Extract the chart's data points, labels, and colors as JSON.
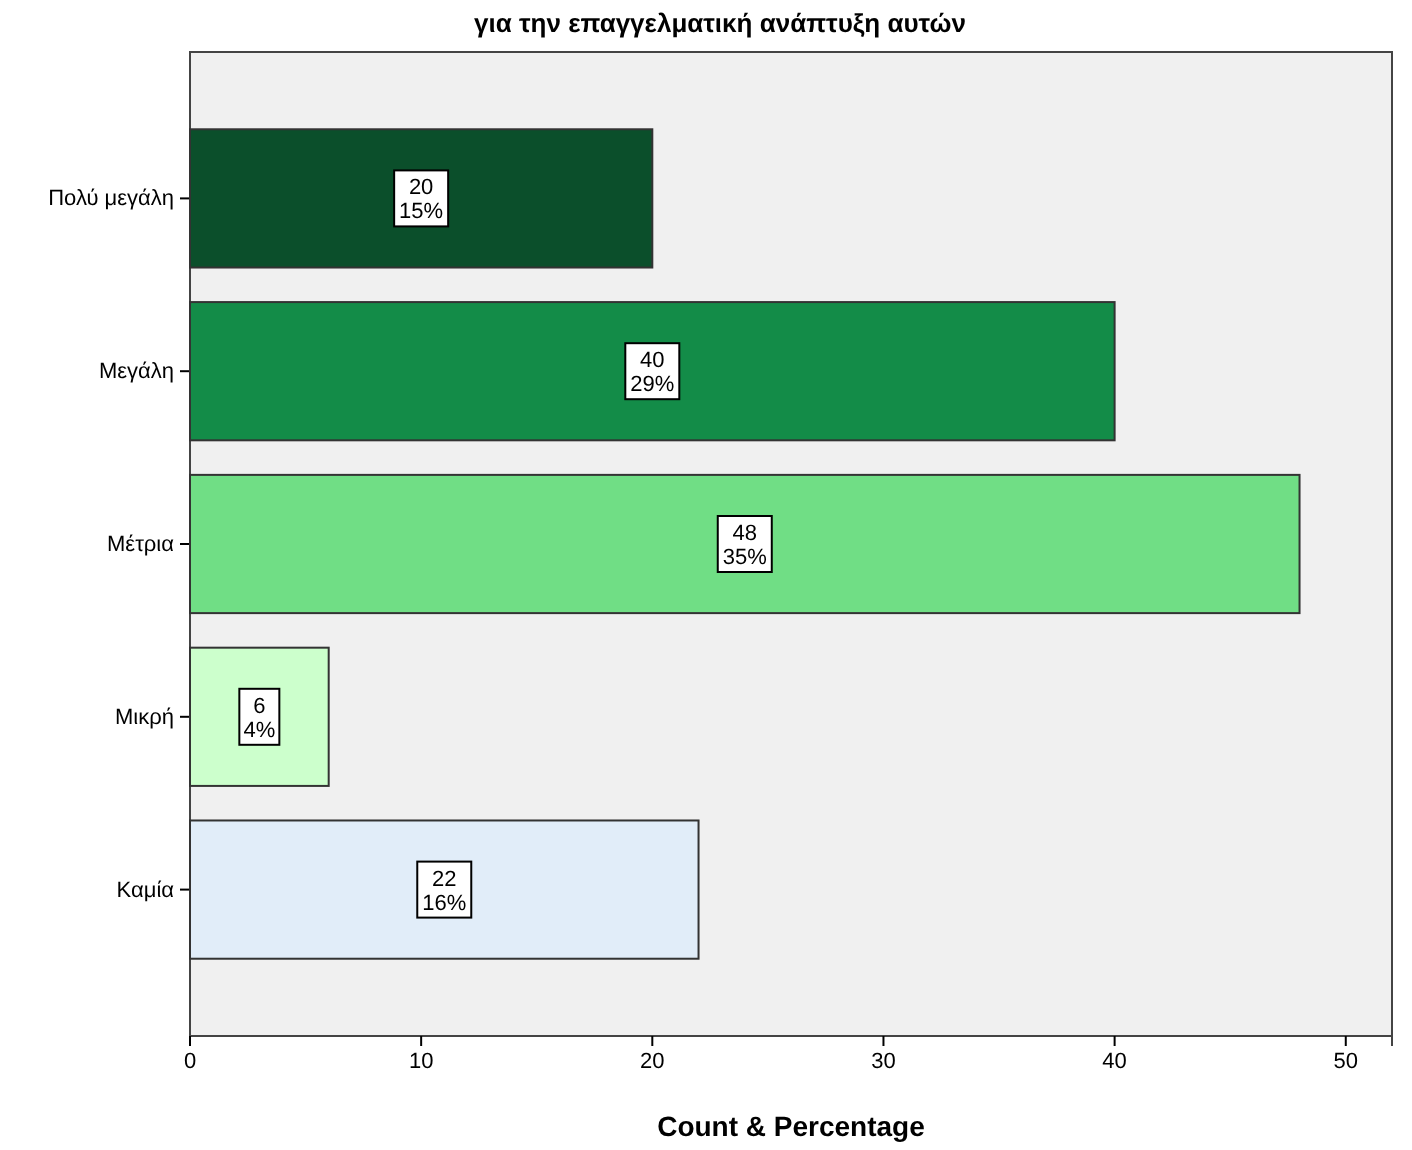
{
  "chart_data": {
    "type": "bar",
    "orientation": "horizontal",
    "title": "για την επαγγελματική ανάπτυξη αυτών",
    "xlabel": "Count & Percentage",
    "categories": [
      "Πολύ μεγάλη",
      "Μεγάλη",
      "Μέτρια",
      "Μικρή",
      "Καμία"
    ],
    "values": [
      20,
      40,
      48,
      6,
      22
    ],
    "colors": [
      "#0b4f2b",
      "#138c48",
      "#70de85",
      "#ccffcc",
      "#e1edf9"
    ],
    "value_labels": [
      "20\n15%",
      "40\n29%",
      "48\n35%",
      "6\n4%",
      "22\n16%"
    ],
    "xlim": [
      0,
      52
    ],
    "xticks": [
      0,
      10,
      20,
      30,
      40,
      50
    ]
  }
}
